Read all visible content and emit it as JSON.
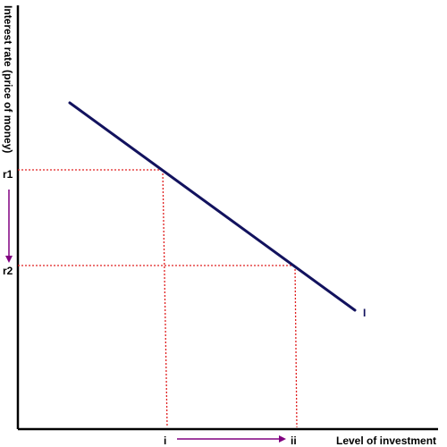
{
  "diagram": {
    "y_axis_label": "Interest rate (price of money)",
    "x_axis_label": "Level of investment",
    "curve_label": "I",
    "rate_labels": {
      "high": "r1",
      "low": "r2"
    },
    "investment_labels": {
      "low": "i",
      "high": "ii"
    },
    "colors": {
      "axes": "#000000",
      "curve": "#12125e",
      "guides": "#e02020",
      "arrows": "#800080",
      "text": "#000000"
    }
  }
}
